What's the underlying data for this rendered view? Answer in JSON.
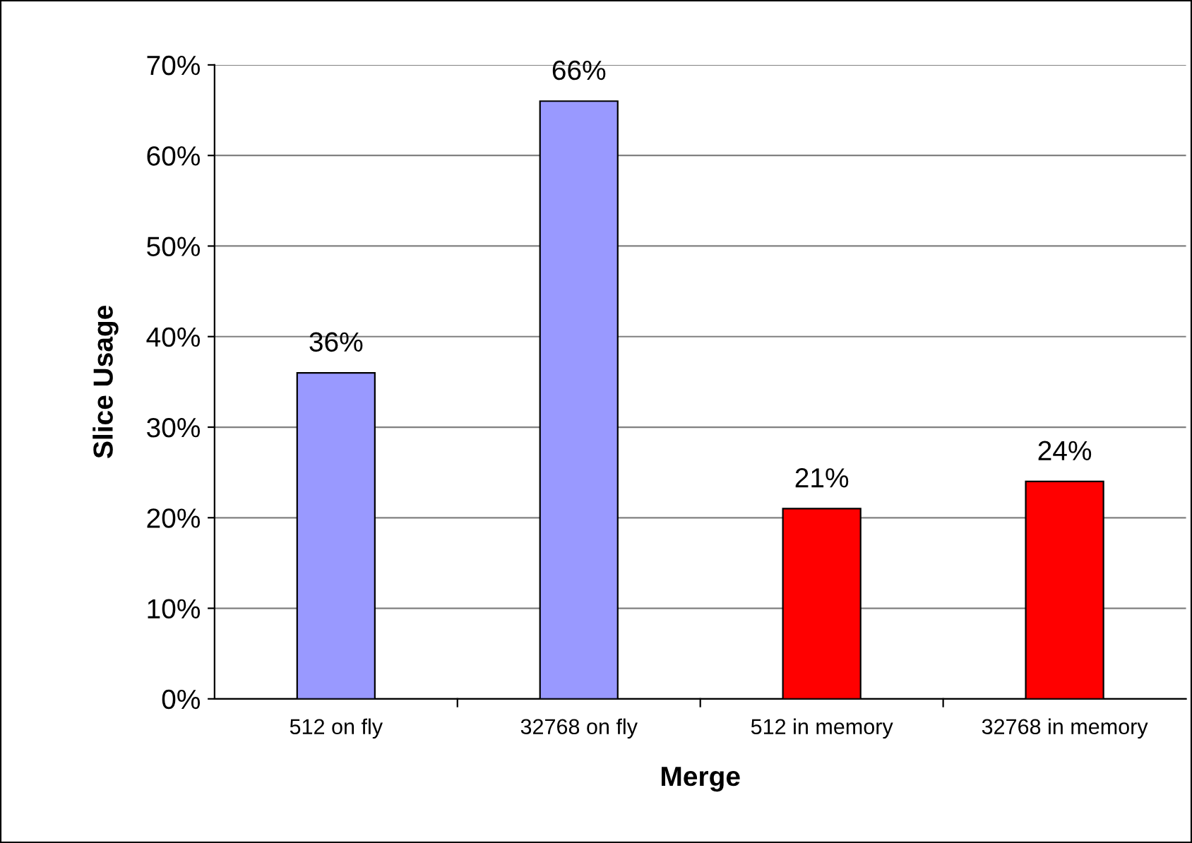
{
  "chart_data": {
    "type": "bar",
    "xlabel": "Merge",
    "ylabel": "Slice Usage",
    "categories": [
      "512 on fly",
      "32768 on fly",
      "512 in memory",
      "32768 in memory"
    ],
    "values": [
      36,
      66,
      21,
      24
    ],
    "colors": [
      "#9999ff",
      "#9999ff",
      "#ff0000",
      "#ff0000"
    ],
    "value_labels": [
      "36%",
      "66%",
      "21%",
      "24%"
    ],
    "ylim": [
      0,
      70
    ],
    "yticks": [
      {
        "value": 0,
        "label": "0%"
      },
      {
        "value": 10,
        "label": "10%"
      },
      {
        "value": 20,
        "label": "20%"
      },
      {
        "value": 30,
        "label": "30%"
      },
      {
        "value": 40,
        "label": "40%"
      },
      {
        "value": 50,
        "label": "50%"
      },
      {
        "value": 60,
        "label": "60%"
      },
      {
        "value": 70,
        "label": "70%"
      }
    ],
    "grid": "y"
  }
}
